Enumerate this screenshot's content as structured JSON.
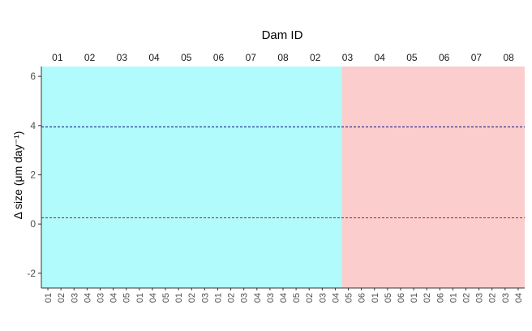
{
  "chart_data": {
    "type": "scatter",
    "title": "Dam ID",
    "ylabel": "Δ size (μm day⁻¹)",
    "ylim": [
      -2.6,
      6.4
    ],
    "yticks": [
      -2,
      0,
      2,
      4,
      6
    ],
    "grid": false,
    "top_facets": [
      "01",
      "02",
      "03",
      "04",
      "05",
      "06",
      "07",
      "08",
      "02",
      "03",
      "04",
      "05",
      "06",
      "07",
      "08"
    ],
    "bottom_labels": [
      "01",
      "02",
      "03",
      "04",
      "03",
      "04",
      "05",
      "01",
      "04",
      "05",
      "01",
      "02",
      "03",
      "01",
      "02",
      "03",
      "04",
      "03",
      "04",
      "05",
      "02",
      "03",
      "04",
      "05",
      "06",
      "01",
      "05",
      "06",
      "01",
      "02",
      "06",
      "01",
      "02",
      "03",
      "02",
      "03",
      "04"
    ],
    "panels": [
      {
        "name": "left",
        "color": "#b2fbfc",
        "x_start": 0,
        "x_end": 23
      },
      {
        "name": "right",
        "color": "#fbcecd",
        "x_start": 23,
        "x_end": 37
      }
    ],
    "reference_lines": [
      {
        "y": 3.95,
        "color": "#0a0a80",
        "style": "dashed"
      },
      {
        "y": 0.25,
        "color": "#c0141c",
        "style": "dashed"
      }
    ],
    "series": []
  }
}
